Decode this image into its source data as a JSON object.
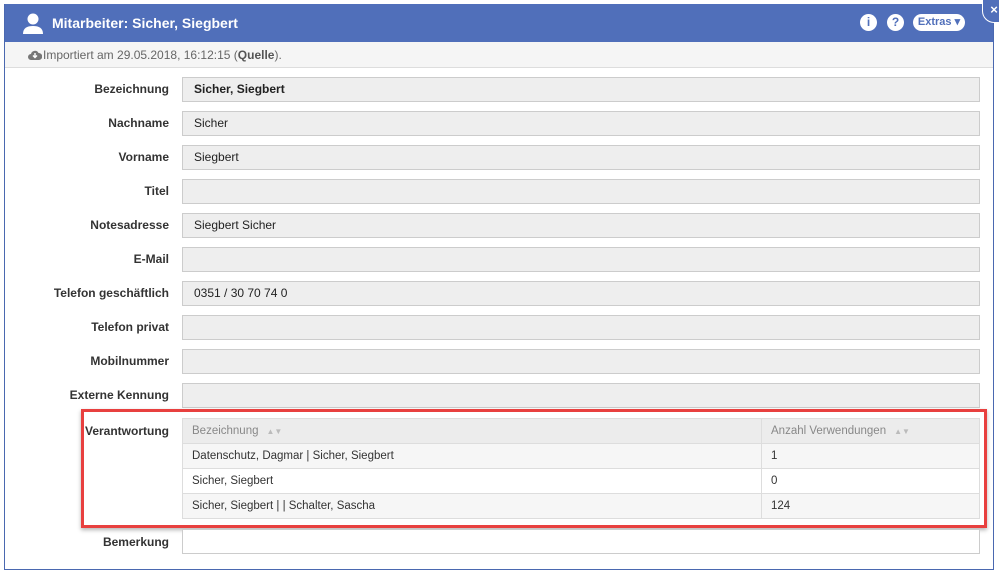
{
  "window": {
    "title": "Mitarbeiter: Sicher, Siegbert",
    "info_label": "i",
    "help_label": "?",
    "extras_label": "Extras ▾",
    "close_label": "×"
  },
  "import": {
    "prefix": "Importiert am 29.05.2018, 16:12:15 (",
    "source": "Quelle",
    "suffix": ")."
  },
  "fields": [
    {
      "label": "Bezeichnung",
      "value": "Sicher, Siegbert"
    },
    {
      "label": "Nachname",
      "value": "Sicher"
    },
    {
      "label": "Vorname",
      "value": "Siegbert"
    },
    {
      "label": "Titel",
      "value": ""
    },
    {
      "label": "Notesadresse",
      "value": "Siegbert Sicher"
    },
    {
      "label": "E-Mail",
      "value": ""
    },
    {
      "label": "Telefon geschäftlich",
      "value": "0351 / 30 70 74 0"
    },
    {
      "label": "Telefon privat",
      "value": ""
    },
    {
      "label": "Mobilnummer",
      "value": ""
    },
    {
      "label": "Externe Kennung",
      "value": ""
    }
  ],
  "verantwortung": {
    "label": "Verantwortung",
    "columns": [
      "Bezeichnung",
      "Anzahl Verwendungen"
    ],
    "rows": [
      [
        "Datenschutz, Dagmar | Sicher, Siegbert",
        "1"
      ],
      [
        "Sicher, Siegbert",
        "0"
      ],
      [
        "Sicher, Siegbert |  | Schalter, Sascha",
        "124"
      ]
    ]
  },
  "bemerkung": {
    "label": "Bemerkung",
    "value": ""
  }
}
